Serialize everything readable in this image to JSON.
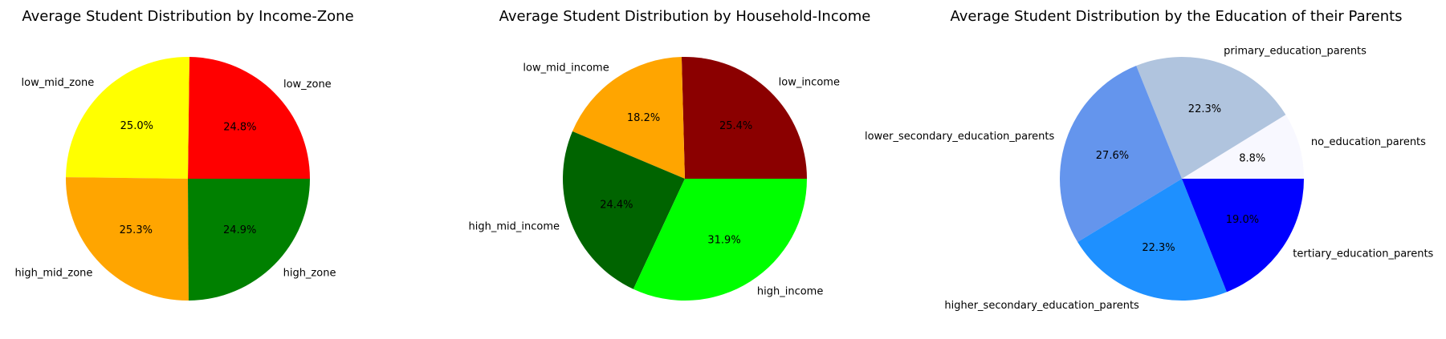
{
  "chart_data": [
    {
      "type": "pie",
      "title": "Average Student Distribution by Income-Zone",
      "slices": [
        {
          "label": "low_zone",
          "value": 24.8,
          "pct_text": "24.8%",
          "color": "#ff0000"
        },
        {
          "label": "low_mid_zone",
          "value": 25.0,
          "pct_text": "25.0%",
          "color": "#ffff00"
        },
        {
          "label": "high_mid_zone",
          "value": 25.3,
          "pct_text": "25.3%",
          "color": "#ffa500"
        },
        {
          "label": "high_zone",
          "value": 24.9,
          "pct_text": "24.9%",
          "color": "#008000"
        }
      ]
    },
    {
      "type": "pie",
      "title": "Average Student Distribution by Household-Income",
      "slices": [
        {
          "label": "low_income",
          "value": 25.4,
          "pct_text": "25.4%",
          "color": "#8b0000"
        },
        {
          "label": "low_mid_income",
          "value": 18.2,
          "pct_text": "18.2%",
          "color": "#ffa500"
        },
        {
          "label": "high_mid_income",
          "value": 24.4,
          "pct_text": "24.4%",
          "color": "#006400"
        },
        {
          "label": "high_income",
          "value": 31.9,
          "pct_text": "31.9%",
          "color": "#00ff00"
        }
      ]
    },
    {
      "type": "pie",
      "title": "Average Student Distribution by the Education of their Parents",
      "slices": [
        {
          "label": "no_education_parents",
          "value": 8.8,
          "pct_text": "8.8%",
          "color": "#f8f8ff"
        },
        {
          "label": "primary_education_parents",
          "value": 22.3,
          "pct_text": "22.3%",
          "color": "#b0c4de"
        },
        {
          "label": "lower_secondary_education_parents",
          "value": 27.6,
          "pct_text": "27.6%",
          "color": "#6495ed"
        },
        {
          "label": "higher_secondary_education_parents",
          "value": 22.3,
          "pct_text": "22.3%",
          "color": "#1e90ff"
        },
        {
          "label": "tertiary_education_parents",
          "value": 19.0,
          "pct_text": "19.0%",
          "color": "#0000ff"
        }
      ]
    }
  ]
}
